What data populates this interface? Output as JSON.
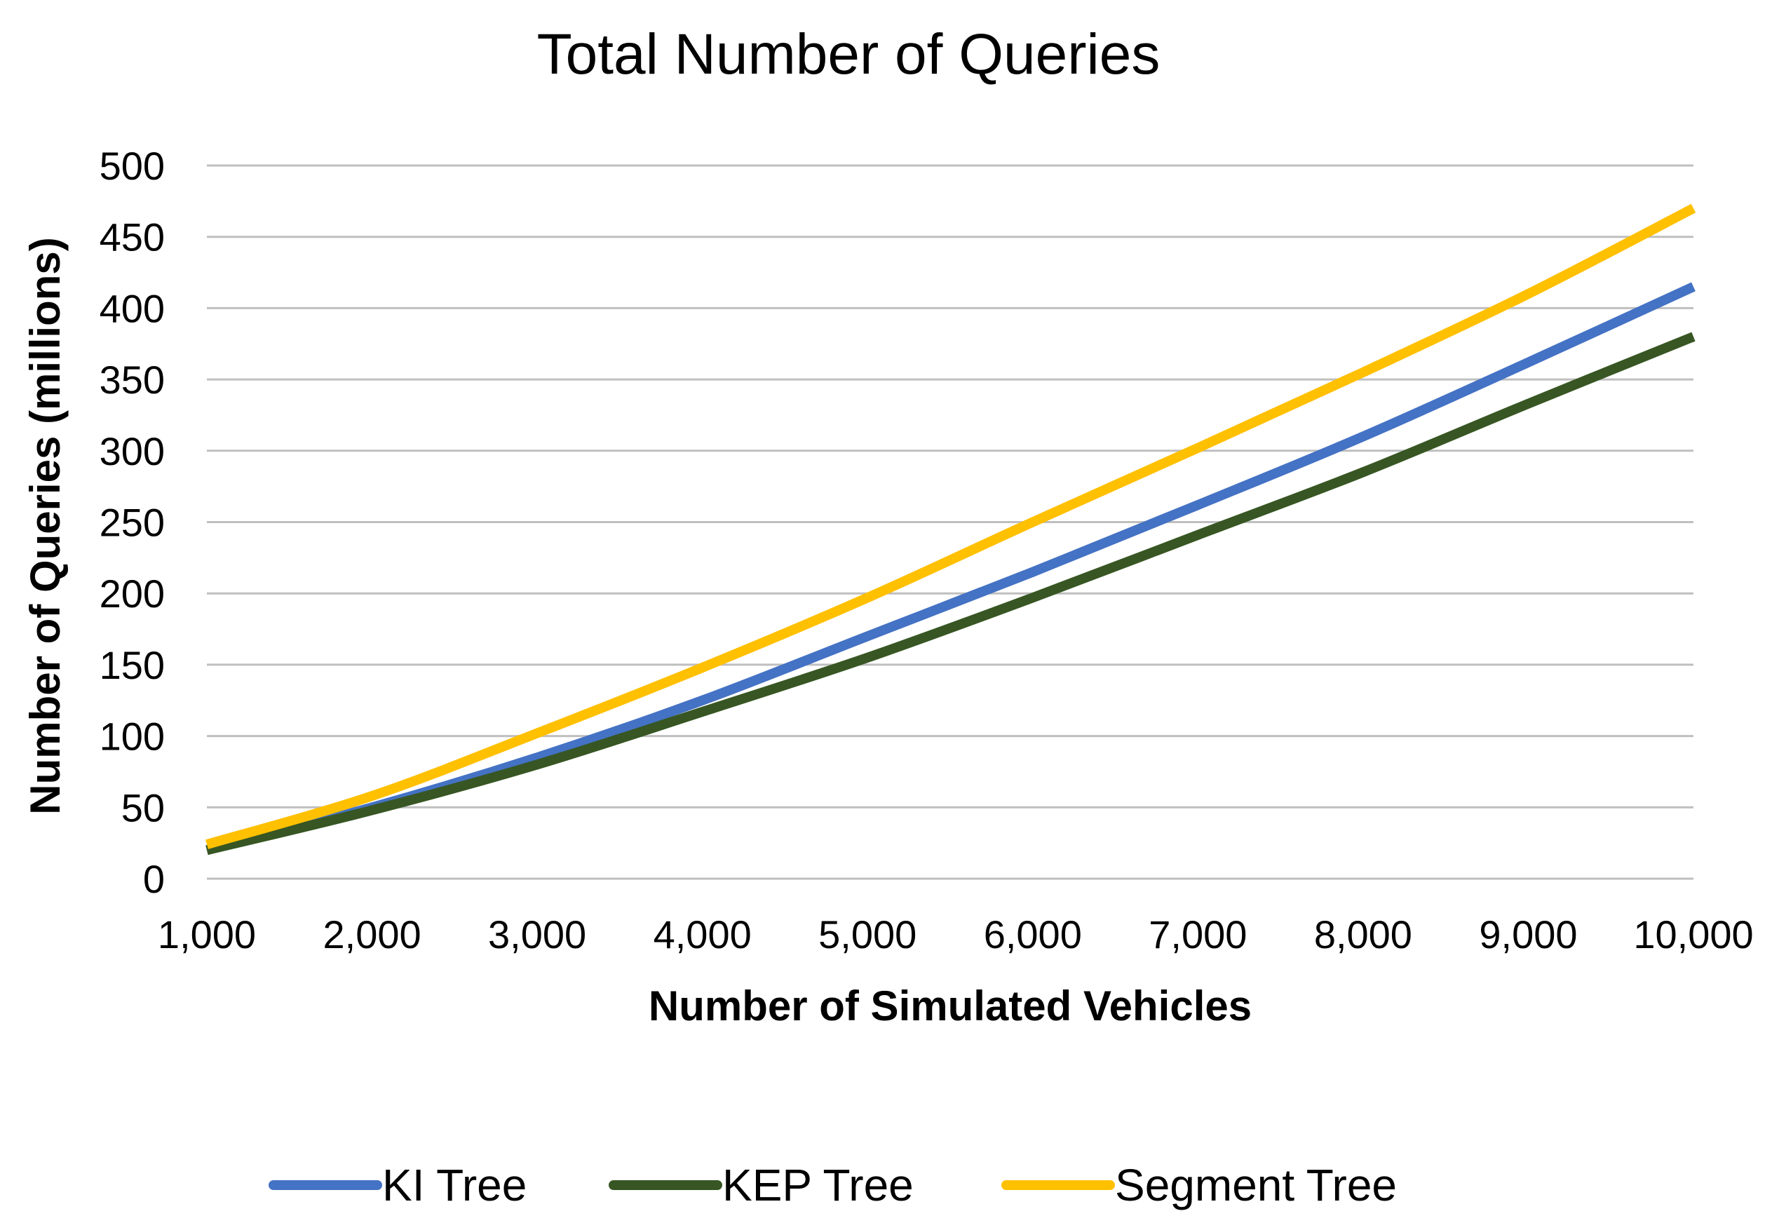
{
  "chart_data": {
    "type": "line",
    "title": "Total Number of Queries",
    "xlabel": "Number of Simulated Vehicles",
    "ylabel": "Number of Queries (millions)",
    "x": [
      1000,
      2000,
      3000,
      4000,
      5000,
      6000,
      7000,
      8000,
      9000,
      10000
    ],
    "x_tick_labels": [
      "1,000",
      "2,000",
      "3,000",
      "4,000",
      "5,000",
      "6,000",
      "7,000",
      "8,000",
      "9,000",
      "10,000"
    ],
    "y_ticks": [
      0,
      50,
      100,
      150,
      200,
      250,
      300,
      350,
      400,
      450,
      500
    ],
    "ylim": [
      0,
      500
    ],
    "grid": true,
    "legend_position": "bottom",
    "series": [
      {
        "name": "KI Tree",
        "color": "#4472c4",
        "values": [
          20,
          50,
          85,
          125,
          170,
          215,
          262,
          310,
          362,
          415
        ]
      },
      {
        "name": "KEP Tree",
        "color": "#375623",
        "values": [
          20,
          48,
          80,
          117,
          155,
          197,
          241,
          285,
          333,
          380
        ]
      },
      {
        "name": "Segment Tree",
        "color": "#ffc000",
        "values": [
          24,
          58,
          102,
          148,
          197,
          250,
          302,
          355,
          410,
          470
        ]
      }
    ]
  }
}
